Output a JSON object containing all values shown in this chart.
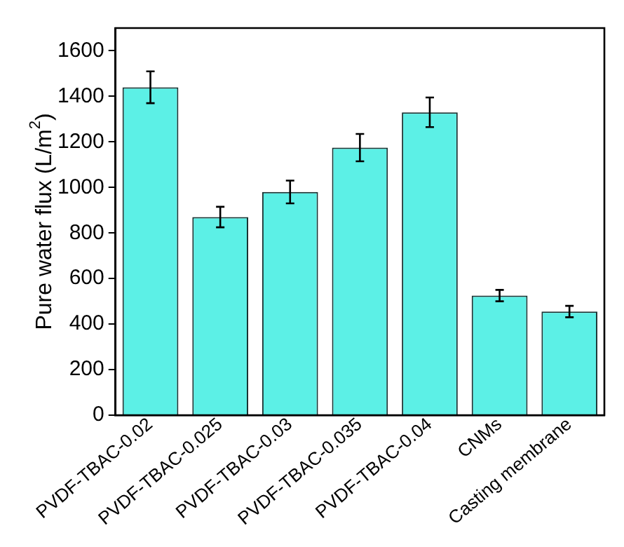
{
  "chart_data": {
    "type": "bar",
    "ylabel": "Pure water flux (L/m$^{2}$)",
    "categories": [
      "PVDF-TBAC-0.02",
      "PVDF-TBAC-0.025",
      "PVDF-TBAC-0.03",
      "PVDF-TBAC-0.035",
      "PVDF-TBAC-0.04",
      "CNMs",
      "Casting membrane"
    ],
    "values": [
      1440,
      870,
      980,
      1175,
      1330,
      525,
      455
    ],
    "errors": [
      70,
      45,
      50,
      60,
      65,
      25,
      25
    ],
    "color": "#5cf0e6",
    "ylim": [
      0,
      1700
    ],
    "yticks": [
      0,
      200,
      400,
      600,
      800,
      1000,
      1200,
      1400,
      1600
    ],
    "grid": false,
    "legend": false
  }
}
